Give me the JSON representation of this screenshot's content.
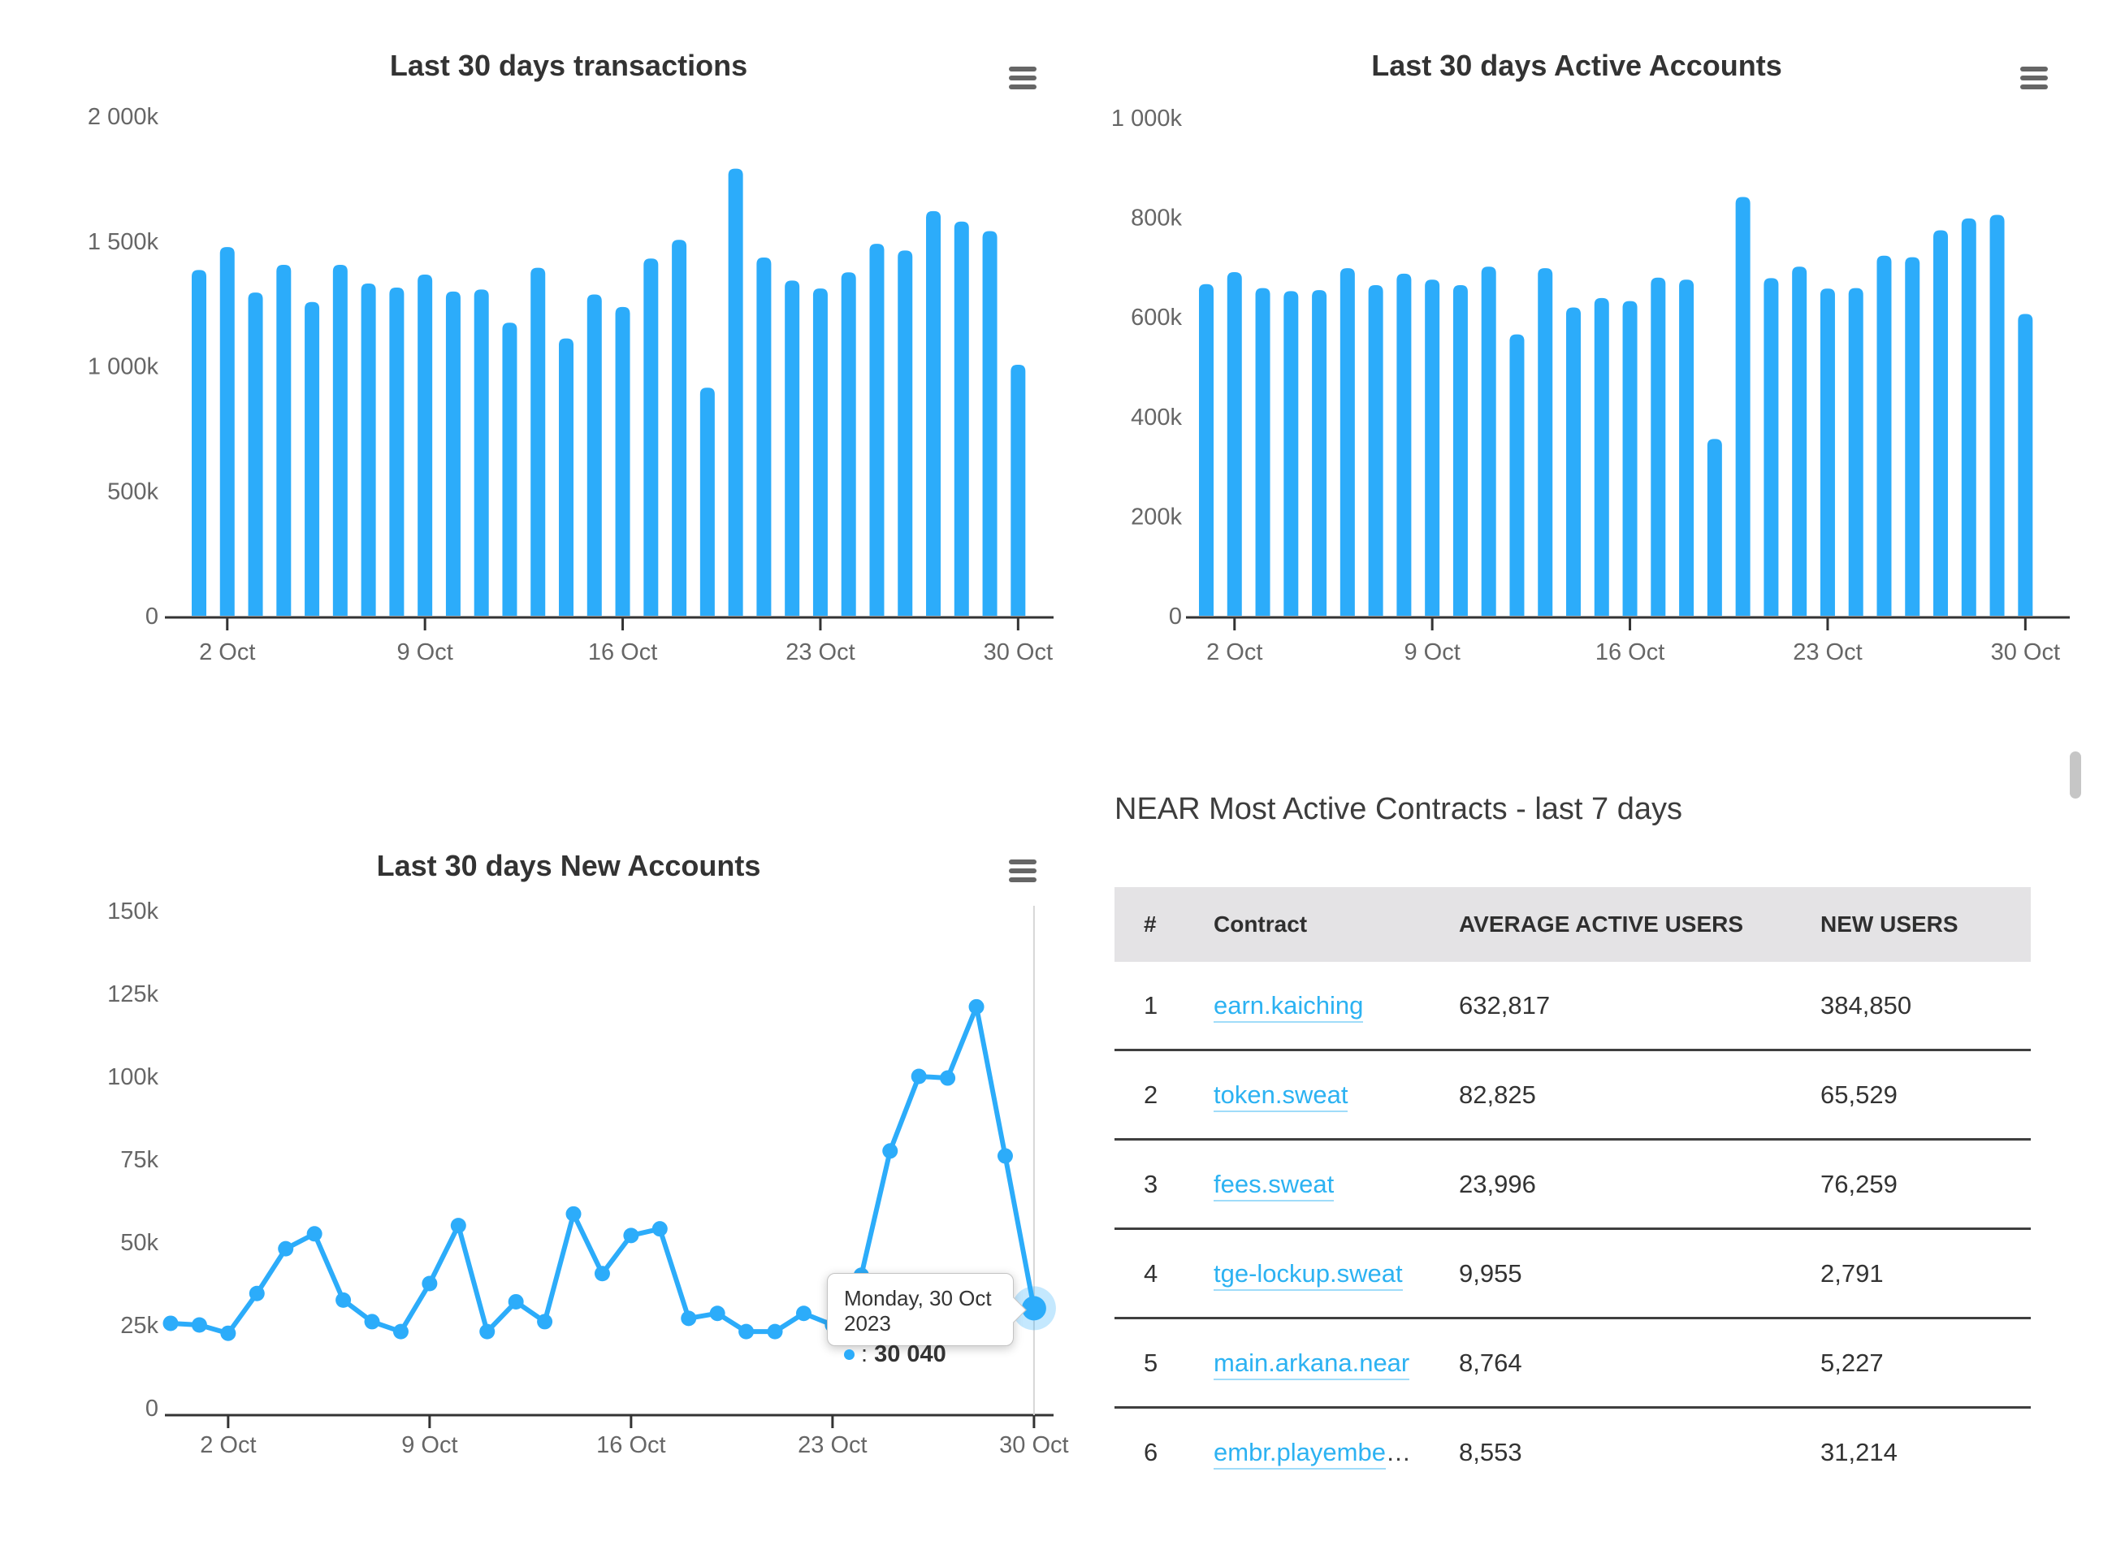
{
  "colors": {
    "accent": "#2CACFA",
    "link": "#2CB2F2",
    "axis_label": "#666666",
    "title": "#333333",
    "axis_line": "#333333",
    "separator": "#3F3F3F",
    "header_bg": "#E4E3E5",
    "scrollbar": "#C6C6C6",
    "crosshair": "#D6D6D6",
    "tooltip_border": "#C3C3C3"
  },
  "icons": {
    "context_menu": "hamburger-icon",
    "tooltip_marker": "blue-dot-icon"
  },
  "chart_data": [
    {
      "type": "bar",
      "title": "Last 30 days transactions",
      "categories": [
        "1 Oct",
        "2 Oct",
        "3 Oct",
        "4 Oct",
        "5 Oct",
        "6 Oct",
        "7 Oct",
        "8 Oct",
        "9 Oct",
        "10 Oct",
        "11 Oct",
        "12 Oct",
        "13 Oct",
        "14 Oct",
        "15 Oct",
        "16 Oct",
        "17 Oct",
        "18 Oct",
        "19 Oct",
        "20 Oct",
        "21 Oct",
        "22 Oct",
        "23 Oct",
        "24 Oct",
        "25 Oct",
        "26 Oct",
        "27 Oct",
        "28 Oct",
        "29 Oct",
        "30 Oct"
      ],
      "values": [
        1384000,
        1476000,
        1294000,
        1405000,
        1256000,
        1405000,
        1330000,
        1314000,
        1366000,
        1298000,
        1306000,
        1173000,
        1393000,
        1110000,
        1286000,
        1236000,
        1430000,
        1505000,
        913000,
        1790000,
        1434000,
        1342000,
        1310000,
        1375000,
        1489000,
        1462000,
        1620000,
        1578000,
        1540000,
        1005000
      ],
      "ylim": [
        0,
        2000000
      ],
      "ytick_labels": [
        "2 000k",
        "1 500k",
        "1 000k",
        "500k",
        "0"
      ],
      "xtick_labels": [
        "2 Oct",
        "9 Oct",
        "16 Oct",
        "23 Oct",
        "30 Oct"
      ],
      "grid": false,
      "legend": "none"
    },
    {
      "type": "bar",
      "title": "Last 30 days Active Accounts",
      "categories": [
        "1 Oct",
        "2 Oct",
        "3 Oct",
        "4 Oct",
        "5 Oct",
        "6 Oct",
        "7 Oct",
        "8 Oct",
        "9 Oct",
        "10 Oct",
        "11 Oct",
        "12 Oct",
        "13 Oct",
        "14 Oct",
        "15 Oct",
        "16 Oct",
        "17 Oct",
        "18 Oct",
        "19 Oct",
        "20 Oct",
        "21 Oct",
        "22 Oct",
        "23 Oct",
        "24 Oct",
        "25 Oct",
        "26 Oct",
        "27 Oct",
        "28 Oct",
        "29 Oct",
        "30 Oct"
      ],
      "values": [
        666000,
        690000,
        658000,
        652000,
        654000,
        698000,
        664000,
        687000,
        675000,
        664000,
        701000,
        565000,
        698000,
        619000,
        638000,
        632000,
        679000,
        675000,
        355000,
        841000,
        678000,
        701000,
        657000,
        658000,
        723000,
        720000,
        774000,
        798000,
        805000,
        606000
      ],
      "ylim": [
        0,
        1000000
      ],
      "ytick_labels": [
        "1 000k",
        "800k",
        "600k",
        "400k",
        "200k",
        "0"
      ],
      "xtick_labels": [
        "2 Oct",
        "9 Oct",
        "16 Oct",
        "23 Oct",
        "30 Oct"
      ],
      "grid": false,
      "legend": "none"
    },
    {
      "type": "line",
      "title": "Last 30 days New Accounts",
      "categories": [
        "30 Sep",
        "1 Oct",
        "2 Oct",
        "3 Oct",
        "4 Oct",
        "5 Oct",
        "6 Oct",
        "7 Oct",
        "8 Oct",
        "9 Oct",
        "10 Oct",
        "11 Oct",
        "12 Oct",
        "13 Oct",
        "14 Oct",
        "15 Oct",
        "16 Oct",
        "17 Oct",
        "18 Oct",
        "19 Oct",
        "20 Oct",
        "21 Oct",
        "22 Oct",
        "23 Oct",
        "24 Oct",
        "25 Oct",
        "26 Oct",
        "27 Oct",
        "28 Oct",
        "29 Oct",
        "30 Oct"
      ],
      "values": [
        25500,
        25000,
        22500,
        34500,
        48000,
        52500,
        32500,
        26000,
        23000,
        37500,
        55000,
        23000,
        32000,
        26000,
        58500,
        40500,
        52000,
        54000,
        27000,
        28500,
        23000,
        23000,
        28500,
        25000,
        40000,
        77500,
        100000,
        99500,
        121000,
        76000,
        30040
      ],
      "ylim": [
        0,
        150000
      ],
      "ytick_labels": [
        "150k",
        "125k",
        "100k",
        "75k",
        "50k",
        "25k",
        "0"
      ],
      "xtick_labels": [
        "2 Oct",
        "9 Oct",
        "16 Oct",
        "23 Oct",
        "30 Oct"
      ],
      "grid": false,
      "legend": "none",
      "selected_point": {
        "index": 30,
        "label": "30 Oct"
      },
      "tooltip": {
        "date_line": "Monday, 30 Oct 2023",
        "colon": ":",
        "value_display": "30 040"
      }
    },
    {
      "type": "table",
      "title": "NEAR Most Active Contracts - last 7 days",
      "columns": [
        "#",
        "Contract",
        "AVERAGE ACTIVE USERS",
        "NEW USERS"
      ],
      "rows": [
        [
          "1",
          "earn.kaiching",
          "632,817",
          "384,850"
        ],
        [
          "2",
          "token.sweat",
          "82,825",
          "65,529"
        ],
        [
          "3",
          "fees.sweat",
          "23,996",
          "76,259"
        ],
        [
          "4",
          "tge-lockup.sweat",
          "9,955",
          "2,791"
        ],
        [
          "5",
          "main.arkana.near",
          "8,764",
          "5,227"
        ],
        [
          "6",
          "embr.playembe…",
          "8,553",
          "31,214"
        ]
      ]
    }
  ]
}
